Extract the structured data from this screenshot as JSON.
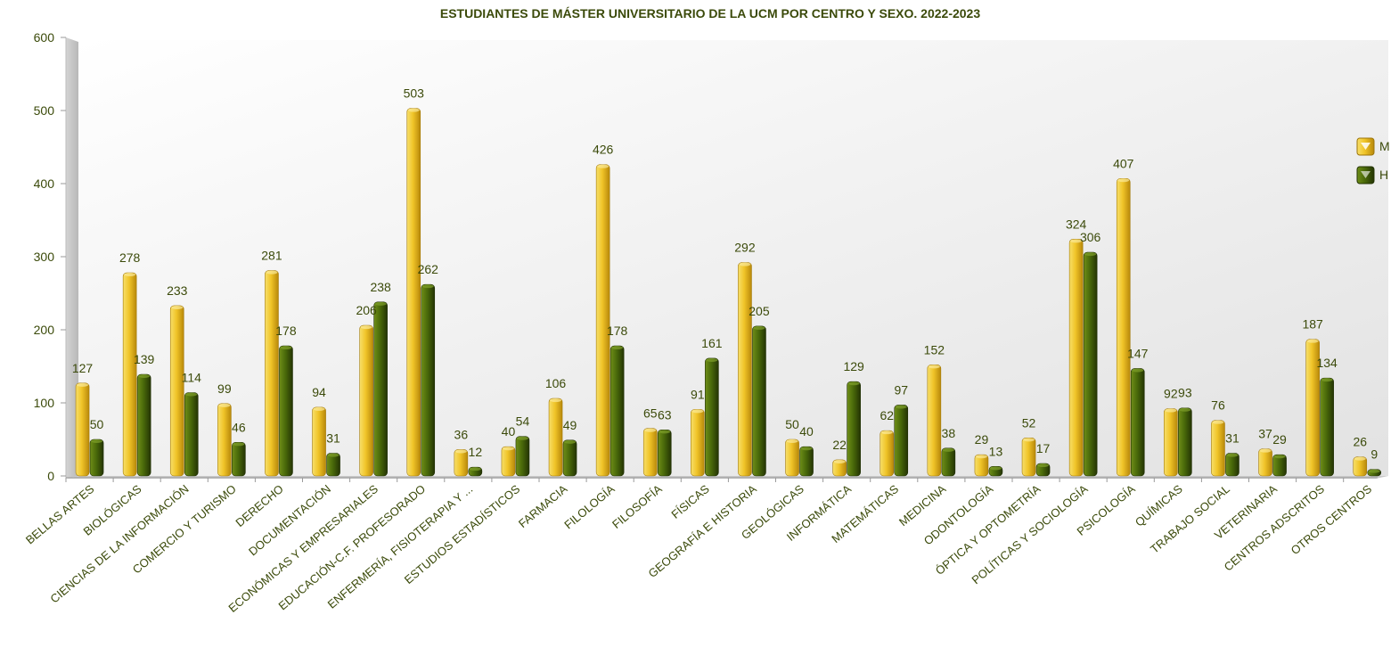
{
  "chart_data": {
    "type": "bar",
    "title": "ESTUDIANTES DE MÁSTER UNIVERSITARIO DE LA UCM POR CENTRO Y SEXO. 2022-2023",
    "xlabel": "",
    "ylabel": "",
    "ylim": [
      0,
      600
    ],
    "yticks": [
      0,
      100,
      200,
      300,
      400,
      500,
      600
    ],
    "grid": false,
    "legend_position": "right",
    "categories": [
      "BELLAS ARTES",
      "BIOLÓGICAS",
      "CIENCIAS DE LA INFORMACIÓN",
      "COMERCIO Y TURISMO",
      "DERECHO",
      "DOCUMENTACIÓN",
      "ECONÓMICAS Y EMPRESARIALES",
      "EDUCACIÓN-C.F. PROFESORADO",
      "ENFERMERÍA, FISIOTERAPIA Y ...",
      "ESTUDIOS ESTADÍSTICOS",
      "FARMACIA",
      "FILOLOGÍA",
      "FILOSOFÍA",
      "FÍSICAS",
      "GEOGRAFÍA E HISTORIA",
      "GEOLÓGICAS",
      "INFORMÁTICA",
      "MATEMÁTICAS",
      "MEDICINA",
      "ODONTOLOGÍA",
      "ÓPTICA Y OPTOMETRÍA",
      "POLÍTICAS Y SOCIOLOGÍA",
      "PSICOLOGÍA",
      "QUÍMICAS",
      "TRABAJO SOCIAL",
      "VETERINARIA",
      "CENTROS ADSCRITOS",
      "OTROS CENTROS"
    ],
    "series": [
      {
        "name": "M",
        "color": "#e8b820",
        "values": [
          127,
          278,
          233,
          99,
          281,
          94,
          206,
          503,
          36,
          40,
          106,
          426,
          65,
          91,
          292,
          50,
          22,
          62,
          152,
          29,
          52,
          324,
          407,
          92,
          76,
          37,
          187,
          26
        ]
      },
      {
        "name": "H",
        "color": "#3f5a08",
        "values": [
          50,
          139,
          114,
          46,
          178,
          31,
          238,
          262,
          12,
          54,
          49,
          178,
          63,
          161,
          205,
          40,
          129,
          97,
          38,
          13,
          17,
          306,
          147,
          93,
          31,
          29,
          134,
          9
        ]
      }
    ]
  }
}
